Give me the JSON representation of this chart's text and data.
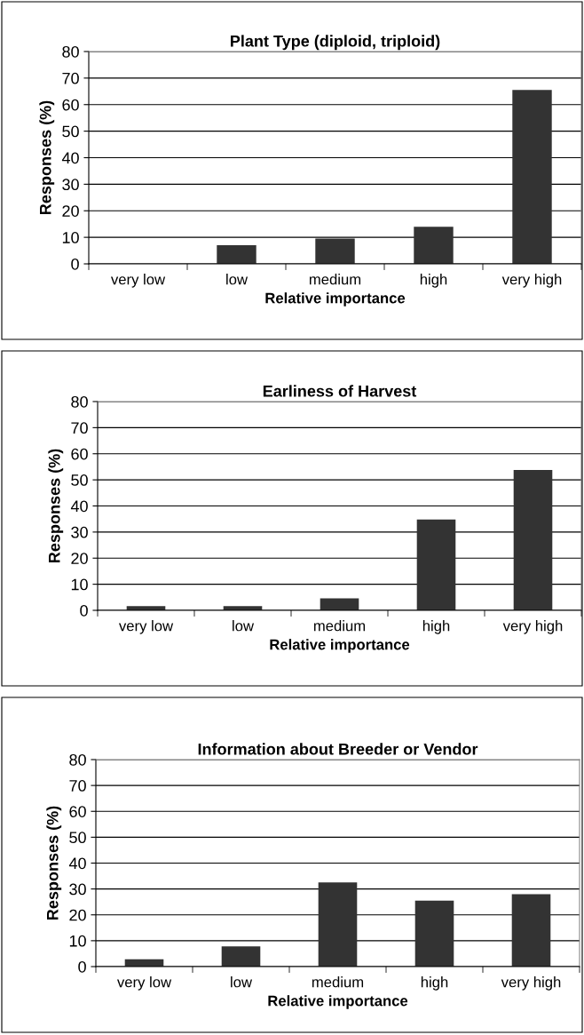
{
  "chart_data": [
    {
      "type": "bar",
      "title": "Plant Type (diploid, triploid)",
      "xlabel": "Relative importance",
      "ylabel": "Responses (%)",
      "categories": [
        "very low",
        "low",
        "medium",
        "high",
        "very high"
      ],
      "values": [
        0,
        7,
        9.5,
        14,
        65.5
      ],
      "color": "#333333",
      "ylim": [
        0,
        80
      ],
      "yticks": [
        0,
        10,
        20,
        30,
        40,
        50,
        60,
        70,
        80
      ],
      "grid": "y"
    },
    {
      "type": "bar",
      "title": "Earliness of Harvest",
      "xlabel": "Relative importance",
      "ylabel": "Responses (%)",
      "categories": [
        "very low",
        "low",
        "medium",
        "high",
        "very high"
      ],
      "values": [
        1.6,
        1.6,
        4.6,
        34.8,
        53.8
      ],
      "color": "#333333",
      "ylim": [
        0,
        80
      ],
      "yticks": [
        0,
        10,
        20,
        30,
        40,
        50,
        60,
        70,
        80
      ],
      "grid": "y"
    },
    {
      "type": "bar",
      "title": "Information about Breeder or Vendor",
      "xlabel": "Relative importance",
      "ylabel": "Responses (%)",
      "categories": [
        "very low",
        "low",
        "medium",
        "high",
        "very high"
      ],
      "values": [
        2.8,
        7.8,
        32.5,
        25.5,
        28
      ],
      "color": "#333333",
      "ylim": [
        0,
        80
      ],
      "yticks": [
        0,
        10,
        20,
        30,
        40,
        50,
        60,
        70,
        80
      ],
      "grid": "y"
    }
  ]
}
